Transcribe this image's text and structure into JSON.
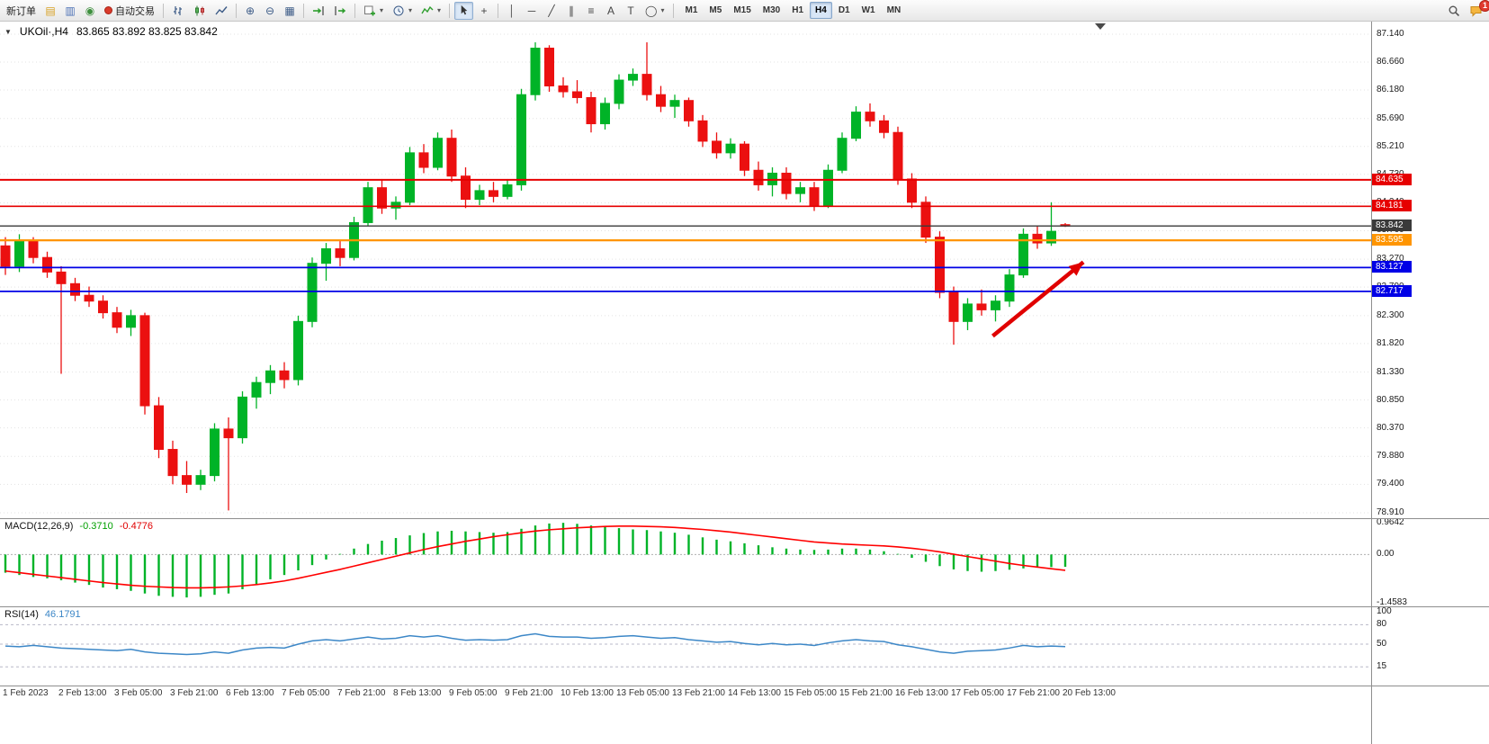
{
  "toolbar": {
    "new_order_label": "新订单",
    "auto_trading_label": "自动交易",
    "text_tool_label": "A",
    "label_tool_label": "T",
    "timeframes": [
      "M1",
      "M5",
      "M15",
      "M30",
      "H1",
      "H4",
      "D1",
      "W1",
      "MN"
    ],
    "active_timeframe": "H4",
    "notification_count": "1"
  },
  "chart": {
    "title_symbol": "UKOil·,H4",
    "title_ohlc": "83.865 83.892 83.825 83.842"
  },
  "indicators": {
    "macd_label": "MACD(12,26,9)",
    "macd_value_main": "-0.3710",
    "macd_value_signal": "-0.4776",
    "macd_scale": [
      "0.9642",
      "0.00",
      "-1.4583"
    ],
    "rsi_label": "RSI(14)",
    "rsi_value": "46.1791",
    "rsi_scale": [
      "100",
      "80",
      "50",
      "15"
    ]
  },
  "colors": {
    "bull": "#00b327",
    "bear": "#eb1010",
    "grid": "#e3e3e3",
    "level_red": "#e60000",
    "level_orange": "#ff9500",
    "level_blue": "#0000e6",
    "current_price": "#3a3a3a",
    "macd_histogram": "#00b327",
    "macd_signal": "#ff0000",
    "rsi_line": "#3c87c7",
    "arrow": "#e00000"
  },
  "chart_data": {
    "type": "candlestick",
    "symbol": "UKOil",
    "timeframe": "H4",
    "current_ohlc": {
      "open": 83.865,
      "high": 83.892,
      "low": 83.825,
      "close": 83.842
    },
    "y_range": [
      78.91,
      87.14
    ],
    "y_ticks": [
      "87.140",
      "86.660",
      "86.180",
      "85.690",
      "85.210",
      "84.730",
      "84.240",
      "83.760",
      "83.270",
      "82.790",
      "82.300",
      "81.820",
      "81.330",
      "80.850",
      "80.370",
      "79.880",
      "79.400",
      "78.910"
    ],
    "x_labels": [
      "1 Feb 2023",
      "2 Feb 13:00",
      "3 Feb 05:00",
      "3 Feb 21:00",
      "6 Feb 13:00",
      "7 Feb 05:00",
      "7 Feb 21:00",
      "8 Feb 13:00",
      "9 Feb 05:00",
      "9 Feb 21:00",
      "10 Feb 13:00",
      "13 Feb 05:00",
      "13 Feb 21:00",
      "14 Feb 13:00",
      "15 Feb 05:00",
      "15 Feb 21:00",
      "16 Feb 13:00",
      "17 Feb 05:00",
      "17 Feb 21:00",
      "20 Feb 13:00"
    ],
    "candles": [
      [
        83.5,
        83.65,
        83.0,
        83.15
      ],
      [
        83.15,
        83.7,
        83.05,
        83.6
      ],
      [
        83.6,
        83.65,
        83.2,
        83.3
      ],
      [
        83.3,
        83.4,
        82.95,
        83.05
      ],
      [
        83.05,
        83.15,
        81.3,
        82.85
      ],
      [
        82.85,
        82.95,
        82.55,
        82.65
      ],
      [
        82.65,
        82.8,
        82.45,
        82.55
      ],
      [
        82.55,
        82.65,
        82.25,
        82.35
      ],
      [
        82.35,
        82.45,
        82.0,
        82.1
      ],
      [
        82.1,
        82.4,
        81.95,
        82.3
      ],
      [
        82.3,
        82.35,
        80.6,
        80.75
      ],
      [
        80.75,
        80.9,
        79.85,
        80.0
      ],
      [
        80.0,
        80.15,
        79.4,
        79.55
      ],
      [
        79.55,
        79.8,
        79.25,
        79.4
      ],
      [
        79.4,
        79.65,
        79.3,
        79.55
      ],
      [
        79.55,
        80.45,
        79.45,
        80.35
      ],
      [
        80.35,
        80.55,
        78.95,
        80.2
      ],
      [
        80.2,
        81.0,
        80.1,
        80.9
      ],
      [
        80.9,
        81.25,
        80.7,
        81.15
      ],
      [
        81.15,
        81.45,
        80.95,
        81.35
      ],
      [
        81.35,
        81.5,
        81.05,
        81.2
      ],
      [
        81.2,
        82.3,
        81.1,
        82.2
      ],
      [
        82.2,
        83.3,
        82.1,
        83.2
      ],
      [
        83.2,
        83.55,
        82.9,
        83.45
      ],
      [
        83.45,
        83.6,
        83.15,
        83.3
      ],
      [
        83.3,
        84.0,
        83.25,
        83.9
      ],
      [
        83.9,
        84.6,
        83.85,
        84.5
      ],
      [
        84.5,
        84.65,
        84.05,
        84.15
      ],
      [
        84.15,
        84.35,
        83.95,
        84.25
      ],
      [
        84.25,
        85.2,
        84.2,
        85.1
      ],
      [
        85.1,
        85.25,
        84.75,
        84.85
      ],
      [
        84.85,
        85.45,
        84.8,
        85.35
      ],
      [
        85.35,
        85.5,
        84.6,
        84.7
      ],
      [
        84.7,
        84.85,
        84.15,
        84.3
      ],
      [
        84.3,
        84.55,
        84.2,
        84.45
      ],
      [
        84.45,
        84.6,
        84.25,
        84.35
      ],
      [
        84.35,
        84.65,
        84.3,
        84.55
      ],
      [
        84.55,
        86.2,
        84.45,
        86.1
      ],
      [
        86.1,
        87.0,
        86.0,
        86.9
      ],
      [
        86.9,
        86.95,
        86.15,
        86.25
      ],
      [
        86.25,
        86.4,
        86.05,
        86.15
      ],
      [
        86.15,
        86.35,
        85.95,
        86.05
      ],
      [
        86.05,
        86.15,
        85.45,
        85.6
      ],
      [
        85.6,
        86.05,
        85.5,
        85.95
      ],
      [
        85.95,
        86.45,
        85.85,
        86.35
      ],
      [
        86.35,
        86.55,
        86.25,
        86.45
      ],
      [
        86.45,
        87.0,
        86.0,
        86.1
      ],
      [
        86.1,
        86.25,
        85.8,
        85.9
      ],
      [
        85.9,
        86.1,
        85.7,
        86.0
      ],
      [
        86.0,
        86.05,
        85.55,
        85.65
      ],
      [
        85.65,
        85.75,
        85.2,
        85.3
      ],
      [
        85.3,
        85.45,
        85.0,
        85.1
      ],
      [
        85.1,
        85.35,
        85.0,
        85.25
      ],
      [
        85.25,
        85.3,
        84.7,
        84.8
      ],
      [
        84.8,
        84.95,
        84.45,
        84.55
      ],
      [
        84.55,
        84.85,
        84.35,
        84.75
      ],
      [
        84.75,
        84.85,
        84.3,
        84.4
      ],
      [
        84.4,
        84.6,
        84.25,
        84.5
      ],
      [
        84.5,
        84.6,
        84.1,
        84.2
      ],
      [
        84.2,
        84.9,
        84.15,
        84.8
      ],
      [
        84.8,
        85.45,
        84.75,
        85.35
      ],
      [
        85.35,
        85.9,
        85.3,
        85.8
      ],
      [
        85.8,
        85.95,
        85.55,
        85.65
      ],
      [
        85.65,
        85.75,
        85.35,
        85.45
      ],
      [
        85.45,
        85.55,
        84.55,
        84.65
      ],
      [
        84.65,
        84.75,
        84.15,
        84.25
      ],
      [
        84.25,
        84.35,
        83.55,
        83.65
      ],
      [
        83.65,
        83.75,
        82.6,
        82.7
      ],
      [
        82.7,
        82.8,
        81.8,
        82.2
      ],
      [
        82.2,
        82.6,
        82.05,
        82.5
      ],
      [
        82.5,
        82.75,
        82.3,
        82.4
      ],
      [
        82.4,
        82.65,
        82.2,
        82.55
      ],
      [
        82.55,
        83.1,
        82.45,
        83.0
      ],
      [
        83.0,
        83.8,
        82.95,
        83.7
      ],
      [
        83.7,
        83.85,
        83.45,
        83.55
      ],
      [
        83.55,
        84.25,
        83.5,
        83.75
      ],
      [
        83.865,
        83.892,
        83.825,
        83.842
      ]
    ],
    "levels": [
      {
        "price": 84.635,
        "color": "#e60000",
        "label": "84.635",
        "width": 2
      },
      {
        "price": 84.181,
        "color": "#e60000",
        "label": "84.181",
        "width": 1.6
      },
      {
        "price": 83.842,
        "color": "#3a3a3a",
        "label": "83.842",
        "width": 1.4
      },
      {
        "price": 83.595,
        "color": "#ff9500",
        "label": "83.595",
        "width": 2.2
      },
      {
        "price": 83.127,
        "color": "#0000e6",
        "label": "83.127",
        "width": 1.8
      },
      {
        "price": 82.717,
        "color": "#0000e6",
        "label": "82.717",
        "width": 1.8
      }
    ],
    "annotations": [
      {
        "type": "arrow",
        "color": "#e00000",
        "from_index": 70.8,
        "from_price": 81.95,
        "to_index": 77.3,
        "to_price": 83.22
      }
    ],
    "macd": {
      "range": [
        -1.4583,
        0.9642
      ],
      "histogram": [
        -0.55,
        -0.62,
        -0.68,
        -0.72,
        -0.78,
        -0.85,
        -0.92,
        -1.0,
        -1.05,
        -1.1,
        -1.18,
        -1.25,
        -1.28,
        -1.3,
        -1.28,
        -1.22,
        -1.18,
        -1.05,
        -0.9,
        -0.75,
        -0.62,
        -0.48,
        -0.32,
        -0.15,
        0.02,
        0.18,
        0.32,
        0.42,
        0.5,
        0.58,
        0.65,
        0.7,
        0.72,
        0.7,
        0.68,
        0.66,
        0.68,
        0.78,
        0.88,
        0.94,
        0.96,
        0.93,
        0.88,
        0.84,
        0.8,
        0.76,
        0.74,
        0.7,
        0.66,
        0.6,
        0.52,
        0.45,
        0.4,
        0.34,
        0.28,
        0.22,
        0.18,
        0.15,
        0.14,
        0.15,
        0.18,
        0.18,
        0.15,
        0.1,
        0.02,
        -0.1,
        -0.22,
        -0.35,
        -0.45,
        -0.5,
        -0.52,
        -0.5,
        -0.46,
        -0.42,
        -0.4,
        -0.38,
        -0.371
      ],
      "signal": [
        -0.5,
        -0.55,
        -0.6,
        -0.65,
        -0.7,
        -0.75,
        -0.8,
        -0.85,
        -0.89,
        -0.93,
        -0.96,
        -0.98,
        -1.0,
        -1.01,
        -1.01,
        -1.0,
        -0.98,
        -0.95,
        -0.91,
        -0.86,
        -0.8,
        -0.72,
        -0.63,
        -0.54,
        -0.45,
        -0.35,
        -0.25,
        -0.15,
        -0.05,
        0.05,
        0.15,
        0.24,
        0.32,
        0.4,
        0.47,
        0.54,
        0.6,
        0.66,
        0.71,
        0.75,
        0.78,
        0.81,
        0.83,
        0.85,
        0.86,
        0.86,
        0.85,
        0.84,
        0.82,
        0.79,
        0.76,
        0.72,
        0.68,
        0.63,
        0.58,
        0.53,
        0.48,
        0.43,
        0.38,
        0.35,
        0.32,
        0.3,
        0.28,
        0.26,
        0.23,
        0.19,
        0.14,
        0.08,
        0.01,
        -0.06,
        -0.13,
        -0.2,
        -0.27,
        -0.33,
        -0.38,
        -0.43,
        -0.478
      ]
    },
    "rsi": {
      "levels": [
        80,
        50,
        15
      ],
      "values": [
        47,
        46,
        48,
        46,
        44,
        43,
        42,
        41,
        40,
        42,
        38,
        36,
        35,
        34,
        35,
        38,
        36,
        41,
        44,
        45,
        44,
        50,
        55,
        57,
        55,
        58,
        61,
        58,
        59,
        63,
        61,
        63,
        59,
        56,
        57,
        56,
        57,
        63,
        66,
        62,
        61,
        61,
        59,
        60,
        62,
        63,
        61,
        59,
        60,
        57,
        55,
        53,
        54,
        51,
        49,
        51,
        49,
        50,
        48,
        52,
        55,
        57,
        55,
        54,
        49,
        46,
        42,
        38,
        36,
        39,
        40,
        41,
        44,
        48,
        46,
        47,
        46.18
      ]
    }
  }
}
